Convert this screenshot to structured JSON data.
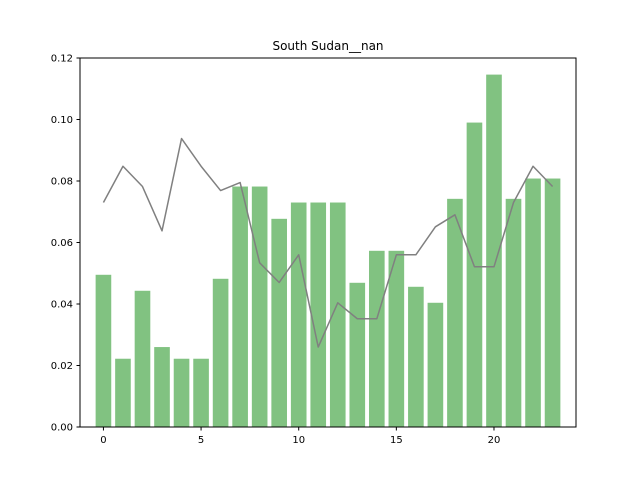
{
  "chart_data": {
    "type": "bar",
    "title": "South Sudan__nan",
    "xlabel": "",
    "ylabel": "",
    "x": [
      0,
      1,
      2,
      3,
      4,
      5,
      6,
      7,
      8,
      9,
      10,
      11,
      12,
      13,
      14,
      15,
      16,
      17,
      18,
      19,
      20,
      21,
      22,
      23
    ],
    "xlim": [
      -1.2,
      24.2
    ],
    "ylim": [
      0,
      0.12
    ],
    "xticks": [
      0,
      5,
      10,
      15,
      20
    ],
    "yticks": [
      0.0,
      0.02,
      0.04,
      0.06,
      0.08,
      0.1,
      0.12
    ],
    "xtick_labels": [
      "0",
      "5",
      "10",
      "15",
      "20"
    ],
    "ytick_labels": [
      "0.00",
      "0.02",
      "0.04",
      "0.06",
      "0.08",
      "0.10",
      "0.12"
    ],
    "grid": false,
    "legend": false,
    "series": [
      {
        "type": "bar",
        "color": "#81c281",
        "values": [
          0.0495,
          0.0222,
          0.0443,
          0.026,
          0.0222,
          0.0222,
          0.0482,
          0.0782,
          0.0782,
          0.0677,
          0.073,
          0.073,
          0.073,
          0.0469,
          0.0573,
          0.0573,
          0.0456,
          0.0404,
          0.0742,
          0.099,
          0.1146,
          0.0742,
          0.0808,
          0.0808
        ]
      },
      {
        "type": "line",
        "color": "#808080",
        "values": [
          0.073,
          0.0848,
          0.0782,
          0.0638,
          0.0938,
          0.0848,
          0.0769,
          0.0795,
          0.0534,
          0.047,
          0.056,
          0.026,
          0.0404,
          0.0352,
          0.0352,
          0.056,
          0.056,
          0.0651,
          0.069,
          0.0521,
          0.0521,
          0.073,
          0.0848,
          0.0782
        ]
      }
    ]
  }
}
